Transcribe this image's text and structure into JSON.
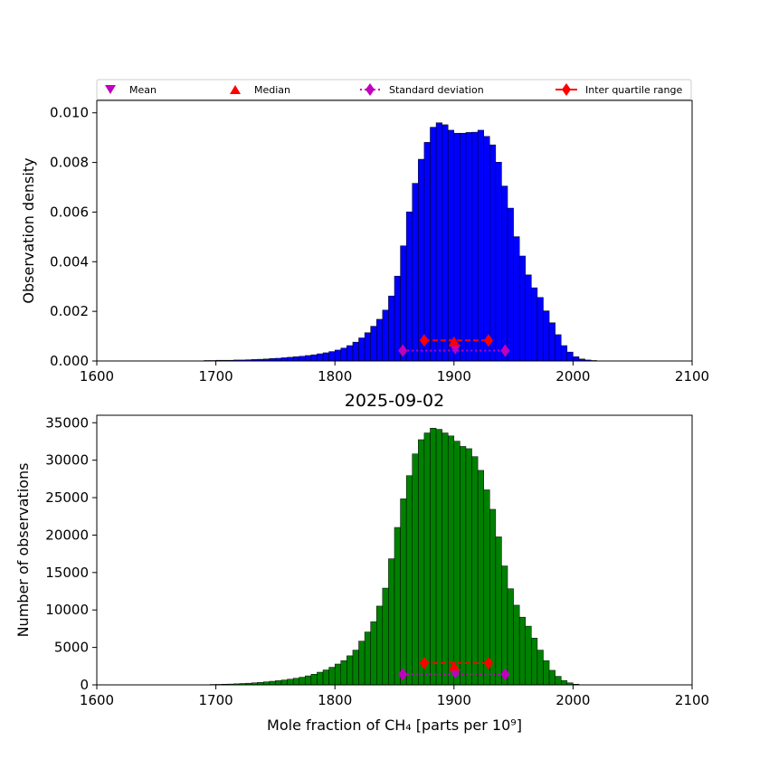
{
  "figure": {
    "legend": {
      "placement": "above-top-panel",
      "entries": [
        {
          "label": "Mean",
          "marker": "triangle-down",
          "color": "#bf00bf"
        },
        {
          "label": "Median",
          "marker": "triangle-up",
          "color": "#ff0000"
        },
        {
          "label": "Standard deviation",
          "marker": "diamond",
          "line": "dotted",
          "color": "#bf00bf"
        },
        {
          "label": "Inter quartile range",
          "marker": "diamond",
          "line": "solid",
          "color": "#ff0000"
        }
      ]
    }
  },
  "chart_data": [
    {
      "type": "bar",
      "title": "",
      "xlabel": "",
      "ylabel": "Observation density",
      "xlim": [
        1600,
        2100
      ],
      "ylim": [
        0,
        0.0105
      ],
      "xticks": [
        "1600",
        "1700",
        "1800",
        "1900",
        "2000",
        "2100"
      ],
      "yticks": [
        "0.000",
        "0.002",
        "0.004",
        "0.006",
        "0.008",
        "0.010"
      ],
      "bar_color": "#0000ff",
      "bin_start": 1690,
      "bin_width": 5,
      "values": [
        2e-05,
        2e-05,
        3e-05,
        3e-05,
        3e-05,
        4e-05,
        4e-05,
        5e-05,
        6e-05,
        7e-05,
        8e-05,
        0.0001,
        0.00011,
        0.00013,
        0.00015,
        0.00017,
        0.00019,
        0.00022,
        0.00025,
        0.00029,
        0.00033,
        0.00038,
        0.00044,
        0.00052,
        0.00062,
        0.00076,
        0.00093,
        0.00114,
        0.0014,
        0.00168,
        0.00205,
        0.00262,
        0.00342,
        0.00464,
        0.00601,
        0.00716,
        0.00813,
        0.00881,
        0.00942,
        0.0096,
        0.00952,
        0.0093,
        0.00918,
        0.00918,
        0.00921,
        0.00922,
        0.0093,
        0.00905,
        0.00871,
        0.00801,
        0.00705,
        0.00616,
        0.00501,
        0.00423,
        0.00347,
        0.00295,
        0.00256,
        0.00202,
        0.00154,
        0.00106,
        0.00062,
        0.00036,
        0.00017,
        8e-05,
        4e-05,
        2e-05
      ],
      "stats": {
        "mean": {
          "x": 1901,
          "y": 0.00048
        },
        "median": {
          "x": 1900,
          "y": 0.00078
        },
        "std": {
          "x": [
            1857,
            1943
          ],
          "y": 0.00042
        },
        "iqr": {
          "x": [
            1875,
            1929
          ],
          "y": 0.00083
        }
      }
    },
    {
      "type": "bar",
      "title": "2025-09-02",
      "xlabel": "Mole fraction of CH₄ [parts per 10⁹]",
      "ylabel": "Number of observations",
      "xlim": [
        1600,
        2100
      ],
      "ylim": [
        0,
        36000
      ],
      "xticks": [
        "1600",
        "1700",
        "1800",
        "1900",
        "2000",
        "2100"
      ],
      "yticks": [
        "0",
        "5000",
        "10000",
        "15000",
        "20000",
        "25000",
        "30000",
        "35000"
      ],
      "bar_color": "#008000",
      "bin_start": 1695,
      "bin_width": 5,
      "values": [
        60,
        70,
        90,
        110,
        140,
        180,
        220,
        270,
        330,
        400,
        480,
        560,
        650,
        760,
        880,
        1020,
        1200,
        1420,
        1690,
        1990,
        2350,
        2780,
        3240,
        3880,
        4640,
        5840,
        7060,
        8440,
        10520,
        12920,
        16840,
        21020,
        24840,
        27940,
        30840,
        32740,
        33640,
        34280,
        34120,
        33640,
        33240,
        32540,
        31840,
        31540,
        30480,
        28640,
        26040,
        23440,
        19760,
        15880,
        12840,
        10640,
        9040,
        7840,
        6240,
        4640,
        3240,
        1940,
        1140,
        580,
        270,
        90,
        30
      ],
      "stats": {
        "mean": {
          "x": 1901,
          "y": 1500
        },
        "median": {
          "x": 1900,
          "y": 2500
        },
        "std": {
          "x": [
            1857,
            1943
          ],
          "y": 1400
        },
        "iqr": {
          "x": [
            1875,
            1929
          ],
          "y": 2900
        }
      }
    }
  ]
}
